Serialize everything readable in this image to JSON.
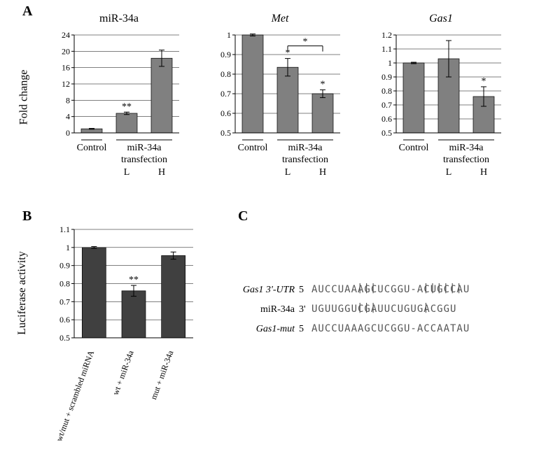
{
  "panels": {
    "A": {
      "label": "A"
    },
    "B": {
      "label": "B"
    },
    "C": {
      "label": "C"
    }
  },
  "shared": {
    "y_axis_label_A": "Fold change",
    "y_axis_label_B": "Luciferase activity",
    "x_control": "Control",
    "x_mir34a": "miR-34a",
    "x_transfection": "transfection",
    "x_L": "L",
    "x_H": "H"
  },
  "chartA1": {
    "title": "miR-34a",
    "title_italic": false,
    "ylim": [
      0,
      24
    ],
    "yticks": [
      0,
      4,
      8,
      12,
      16,
      20,
      24
    ],
    "values": [
      1.0,
      4.8,
      18.3
    ],
    "errors": [
      0.1,
      0.3,
      2.0
    ],
    "sig": [
      "",
      "**",
      ""
    ],
    "bar_color": "#808080",
    "grid_color": "#000000",
    "background": "#ffffff"
  },
  "chartA2": {
    "title": "Met",
    "title_italic": true,
    "ylim": [
      0.5,
      1.0
    ],
    "yticks": [
      0.5,
      0.6,
      0.7,
      0.8,
      0.9,
      1.0
    ],
    "values": [
      1.0,
      0.835,
      0.7
    ],
    "errors": [
      0.005,
      0.045,
      0.02
    ],
    "sig": [
      "",
      "*",
      "*"
    ],
    "bracket": true,
    "bar_color": "#808080"
  },
  "chartA3": {
    "title": "Gas1",
    "title_italic": true,
    "ylim": [
      0.5,
      1.2
    ],
    "yticks": [
      0.5,
      0.6,
      0.7,
      0.8,
      0.9,
      1.0,
      1.1,
      1.2
    ],
    "values": [
      1.0,
      1.03,
      0.76
    ],
    "errors": [
      0.005,
      0.13,
      0.07
    ],
    "sig": [
      "",
      "",
      "*"
    ],
    "bar_color": "#808080"
  },
  "chartB": {
    "ylim": [
      0.5,
      1.1
    ],
    "yticks": [
      0.5,
      0.6,
      0.7,
      0.8,
      0.9,
      1.0,
      1.1
    ],
    "values": [
      1.0,
      0.76,
      0.955
    ],
    "errors": [
      0.005,
      0.03,
      0.02
    ],
    "sig": [
      "",
      "**",
      ""
    ],
    "xlabels": [
      "wt/mut + scrambled miRNA",
      "wt + miR-34a",
      "mut + miR-34a"
    ],
    "bar_color": "#404040"
  },
  "panelC": {
    "rows": [
      {
        "label": "Gas1 3'-UTR",
        "side": "5",
        "seq": "AUCCUAAAGCUCGGU-ACUGCCAU"
      },
      {
        "label": "miR-34a",
        "side": "3'",
        "seq": "UGUUGGUCGAUUCUGUGACGGU "
      },
      {
        "label": "Gas1-mut",
        "side": "5",
        "seq": "AUCCUAAAGCUCGGU-ACCAATAU"
      }
    ],
    "bonds1": "       |||       |||||| ",
    "bonds2": "       |||       |      "
  }
}
